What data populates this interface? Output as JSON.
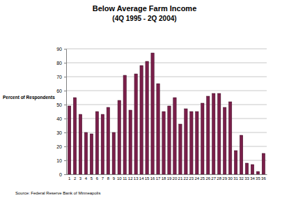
{
  "chart_data": {
    "type": "bar",
    "title": "Below Average Farm Income",
    "subtitle": "(4Q 1995 - 2Q 2004)",
    "y_label": "Percent of Respondents",
    "source": "Source: Federal Reserve Bank of Minneapolis",
    "categories": [
      "1",
      "2",
      "3",
      "4",
      "5",
      "6",
      "7",
      "8",
      "9",
      "10",
      "11",
      "12",
      "13",
      "14",
      "15",
      "16",
      "17",
      "18",
      "19",
      "20",
      "21",
      "22",
      "23",
      "24",
      "25",
      "26",
      "27",
      "28",
      "29",
      "30",
      "31",
      "32",
      "33",
      "34",
      "35",
      "36"
    ],
    "values": [
      49,
      55,
      43,
      30,
      29,
      45,
      43,
      48,
      30,
      53,
      71,
      46,
      72,
      78,
      81,
      87,
      65,
      45,
      49,
      55,
      36,
      47,
      45,
      45,
      51,
      56,
      58,
      58,
      48,
      52,
      17,
      28,
      8,
      7,
      2,
      15
    ],
    "color": "#7a1f4a",
    "ylim": [
      0,
      90
    ],
    "yticks": [
      0,
      10,
      20,
      30,
      40,
      50,
      60,
      70,
      80,
      90
    ],
    "grid": true
  }
}
